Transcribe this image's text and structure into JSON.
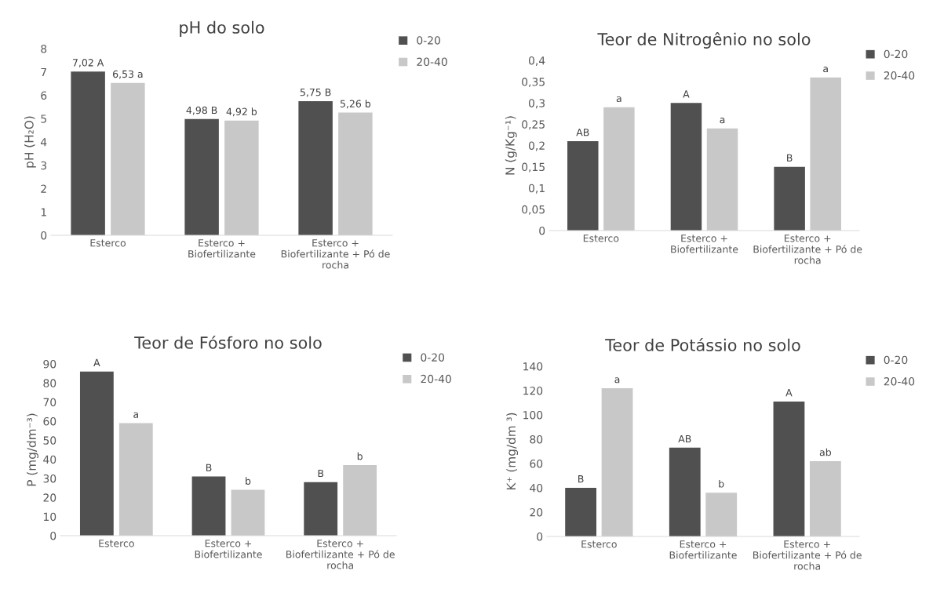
{
  "chart_data": [
    {
      "type": "bar",
      "title": "pH do solo",
      "ylabel": "pH (H₂O)",
      "categories": [
        "Esterco",
        "Esterco +\nBiofertilizante",
        "Esterco +\nBiofertilizante + Pó de\nrocha"
      ],
      "ylim": [
        0,
        8
      ],
      "yticks": [
        0,
        1,
        2,
        3,
        4,
        5,
        6,
        7,
        8
      ],
      "grid": false,
      "legend": "right",
      "series": [
        {
          "name": "0-20",
          "color": "#505050",
          "values": [
            7.02,
            4.98,
            5.75
          ],
          "value_labels": [
            "7,02 A",
            "4,98 B",
            "5,75 B"
          ]
        },
        {
          "name": "20-40",
          "color": "#c8c8c8",
          "values": [
            6.53,
            4.92,
            5.26
          ],
          "value_labels": [
            "6,53 a",
            "4,92 b",
            "5,26 b"
          ]
        }
      ]
    },
    {
      "type": "bar",
      "title": "Teor de Nitrogênio no solo",
      "ylabel": "N (g/Kg⁻¹)",
      "categories": [
        "Esterco",
        "Esterco +\nBiofertilizante",
        "Esterco +\nBiofertilizante + Pó de\nrocha"
      ],
      "ylim": [
        0,
        0.4
      ],
      "yticks": [
        {
          "value": 0,
          "label": "0"
        },
        {
          "value": 0.05,
          "label": "0,05"
        },
        {
          "value": 0.1,
          "label": "0,1"
        },
        {
          "value": 0.15,
          "label": "0,15"
        },
        {
          "value": 0.2,
          "label": "0,2"
        },
        {
          "value": 0.25,
          "label": "0,25"
        },
        {
          "value": 0.3,
          "label": "0,3"
        },
        {
          "value": 0.35,
          "label": "0,35"
        },
        {
          "value": 0.4,
          "label": "0,4"
        }
      ],
      "grid": false,
      "legend": "right",
      "series": [
        {
          "name": "0-20",
          "color": "#505050",
          "values": [
            0.21,
            0.3,
            0.15
          ],
          "value_labels": [
            "AB",
            "A",
            "B"
          ]
        },
        {
          "name": "20-40",
          "color": "#c8c8c8",
          "values": [
            0.29,
            0.24,
            0.36
          ],
          "value_labels": [
            "a",
            "a",
            "a"
          ]
        }
      ]
    },
    {
      "type": "bar",
      "title": "Teor de Fósforo no solo",
      "ylabel": "P (mg/dm⁻³)",
      "categories": [
        "Esterco",
        "Esterco +\nBiofertilizante",
        "Esterco +\nBiofertilizante + Pó de\nrocha"
      ],
      "ylim": [
        0,
        90
      ],
      "yticks": [
        0,
        10,
        20,
        30,
        40,
        50,
        60,
        70,
        80,
        90
      ],
      "grid": false,
      "legend": "right",
      "series": [
        {
          "name": "0-20",
          "color": "#505050",
          "values": [
            86,
            31,
            28
          ],
          "value_labels": [
            "A",
            "B",
            "B"
          ]
        },
        {
          "name": "20-40",
          "color": "#c8c8c8",
          "values": [
            59,
            24,
            37
          ],
          "value_labels": [
            "a",
            "b",
            "b"
          ]
        }
      ]
    },
    {
      "type": "bar",
      "title": "Teor de Potássio no solo",
      "ylabel": "K⁺ (mg/dm ³)",
      "categories": [
        "Esterco",
        "Esterco +\nBiofertilizante",
        "Esterco +\nBiofertilizante + Pó de\nrocha"
      ],
      "ylim": [
        0,
        140
      ],
      "yticks": [
        0,
        20,
        40,
        60,
        80,
        100,
        120,
        140
      ],
      "grid": false,
      "legend": "right",
      "series": [
        {
          "name": "0-20",
          "color": "#505050",
          "values": [
            40,
            73,
            111
          ],
          "value_labels": [
            "B",
            "AB",
            "A"
          ]
        },
        {
          "name": "20-40",
          "color": "#c8c8c8",
          "values": [
            122,
            36,
            62
          ],
          "value_labels": [
            "a",
            "b",
            "ab"
          ]
        }
      ]
    }
  ]
}
